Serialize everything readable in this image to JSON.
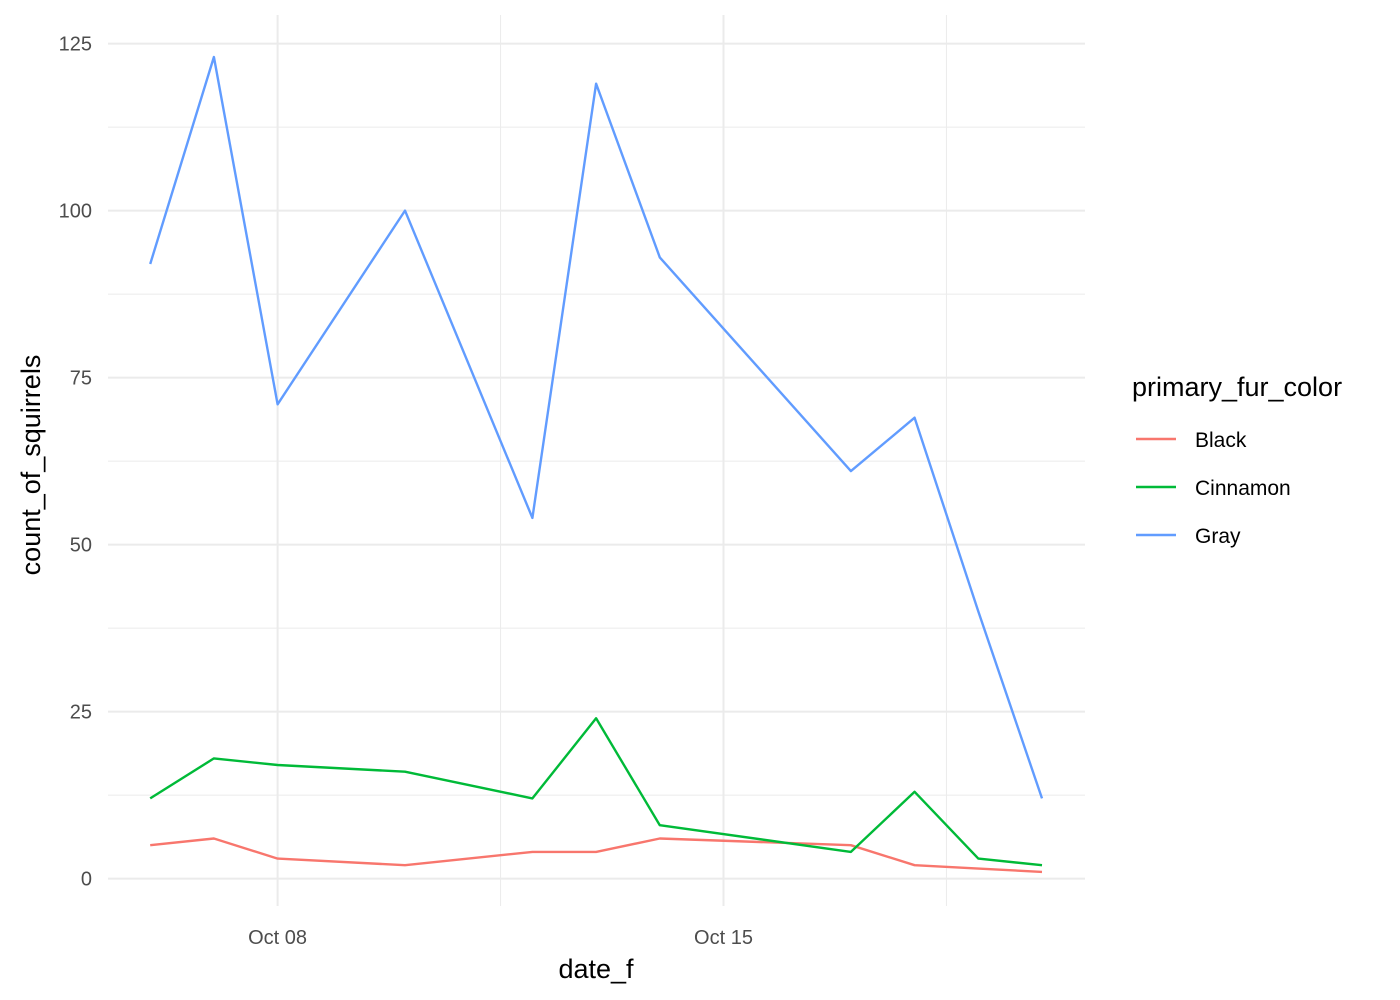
{
  "chart_data": {
    "type": "line",
    "xlabel": "date_f",
    "ylabel": "count_of_squirrels",
    "ylim": [
      0,
      125
    ],
    "xlim": [
      "2018-10-05",
      "2018-10-20"
    ],
    "x": [
      "2018-10-06",
      "2018-10-07",
      "2018-10-08",
      "2018-10-10",
      "2018-10-12",
      "2018-10-13",
      "2018-10-14",
      "2018-10-17",
      "2018-10-18",
      "2018-10-19",
      "2018-10-20"
    ],
    "x_ticks": [
      {
        "date": "2018-10-08",
        "label": "Oct 08"
      },
      {
        "date": "2018-10-15",
        "label": "Oct 15"
      }
    ],
    "y_ticks": [
      {
        "value": 0,
        "label": "0"
      },
      {
        "value": 25,
        "label": "25"
      },
      {
        "value": 50,
        "label": "50"
      },
      {
        "value": 75,
        "label": "75"
      },
      {
        "value": 100,
        "label": "100"
      },
      {
        "value": 125,
        "label": "125"
      }
    ],
    "legend": {
      "title": "primary_fur_color",
      "position": "right"
    },
    "series": [
      {
        "name": "Black",
        "color": "#F8766D",
        "values": [
          5,
          6,
          3,
          2,
          4,
          4,
          6,
          5,
          2,
          1.5,
          1
        ]
      },
      {
        "name": "Cinnamon",
        "color": "#00BA38",
        "values": [
          12,
          18,
          17,
          16,
          12,
          24,
          8,
          4,
          13,
          3,
          2
        ]
      },
      {
        "name": "Gray",
        "color": "#619CFF",
        "values": [
          92,
          123,
          71,
          100,
          54,
          119,
          93,
          61,
          69,
          40,
          12
        ]
      }
    ]
  }
}
